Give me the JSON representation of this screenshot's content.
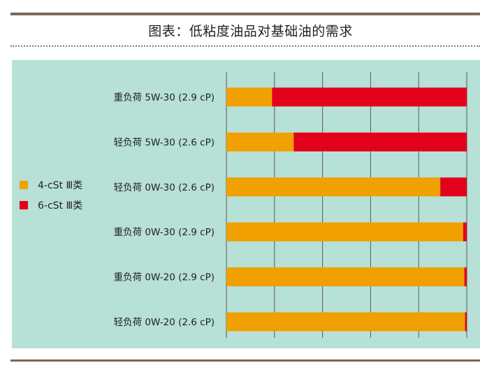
{
  "title": "图表：低粘度油品对基础油的需求",
  "colors": {
    "series_4cst": "#f0a000",
    "series_6cst": "#e3001b",
    "panel_bg": "#b7e0d6",
    "grid": "#5a5a5a"
  },
  "chart_data": {
    "type": "bar",
    "orientation": "horizontal",
    "stacked": true,
    "title": "图表：低粘度油品对基础油的需求",
    "xlabel": "",
    "ylabel": "",
    "xlim": [
      0,
      100
    ],
    "grid": true,
    "legend_position": "left",
    "categories": [
      "重负荷 5W-30 (2.9 cP)",
      "轻负荷 5W-30 (2.6 cP)",
      "轻负荷 0W-30 (2.6 cP)",
      "重负荷 0W-30 (2.9 cP)",
      "重负荷 0W-20 (2.9 cP)",
      "轻负荷 0W-20 (2.6 cP)"
    ],
    "series": [
      {
        "name": "4-cSt Ⅲ类",
        "values": [
          19,
          28,
          89,
          98.5,
          99,
          99.3
        ]
      },
      {
        "name": "6-cSt Ⅲ类",
        "values": [
          81,
          72,
          11,
          1.5,
          1,
          0.7
        ]
      }
    ]
  }
}
